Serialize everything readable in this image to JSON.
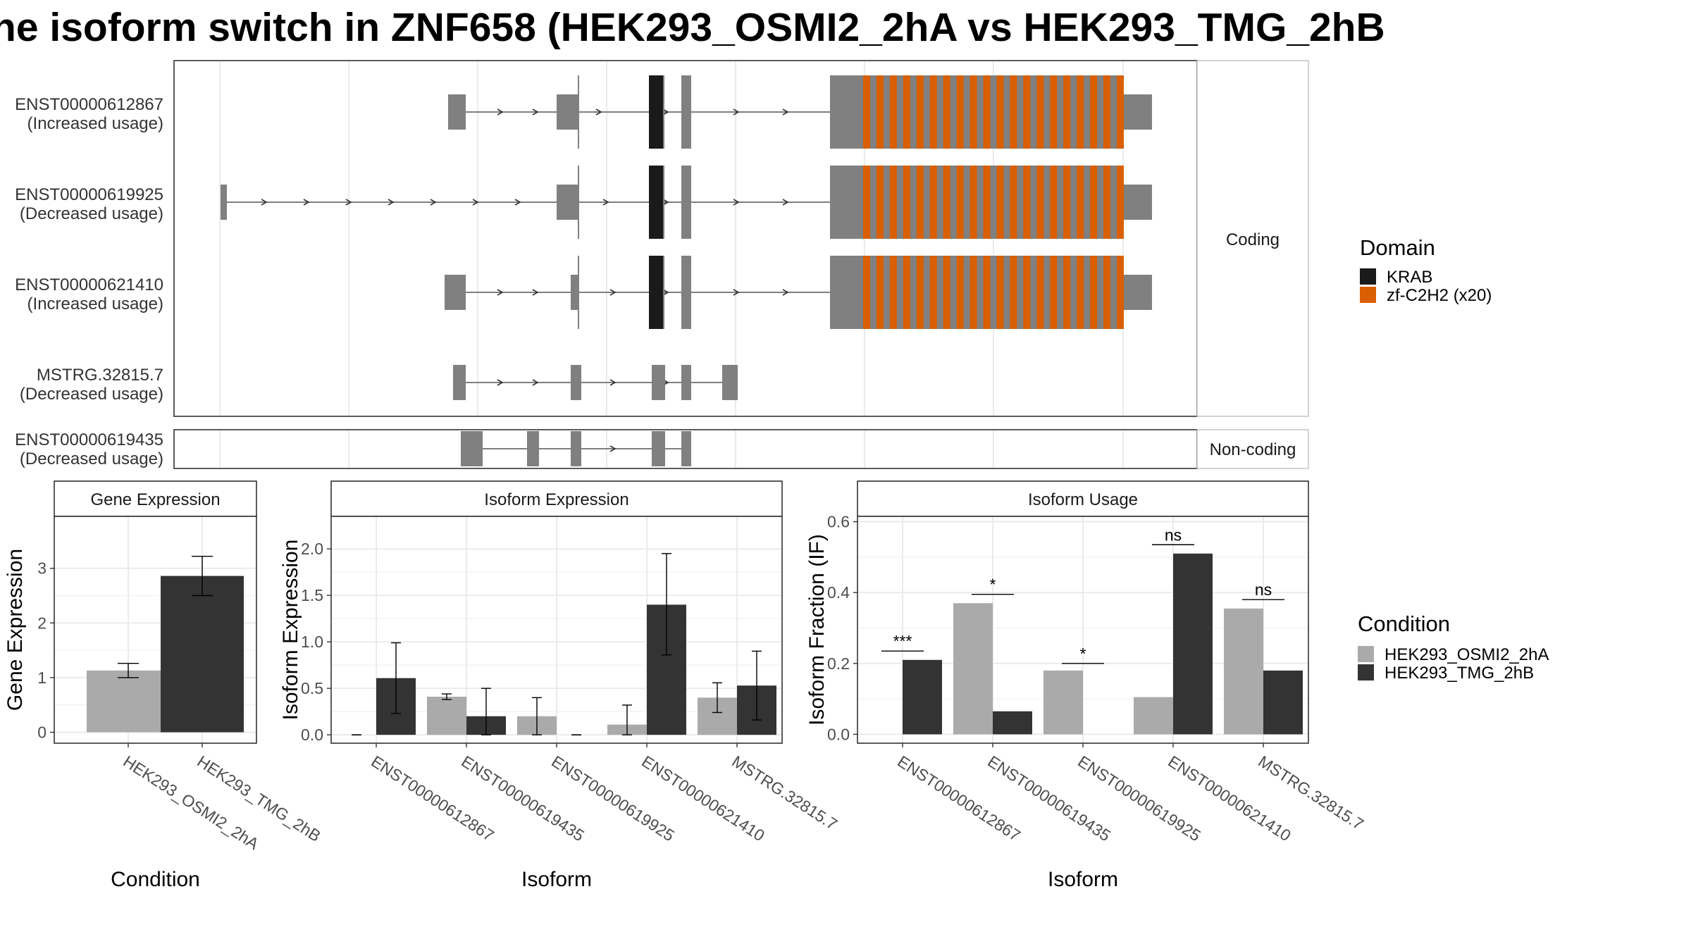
{
  "title": "he isoform switch in ZNF658 (HEK293_OSMI2_2hA vs HEK293_TMG_2hB",
  "colors": {
    "exon": "#808080",
    "krab": "#1a1a1a",
    "znf": "#d95f02",
    "cond1": "#aaaaaa",
    "cond2": "#333333"
  },
  "structure": {
    "transcripts": [
      {
        "id": "ENST00000612867",
        "usage": "(Increased usage)"
      },
      {
        "id": "ENST00000619925",
        "usage": "(Decreased usage)"
      },
      {
        "id": "ENST00000621410",
        "usage": "(Increased usage)"
      },
      {
        "id": "MSTRG.32815.7",
        "usage": "(Decreased usage)"
      },
      {
        "id": "ENST00000619435",
        "usage": "(Decreased usage)"
      }
    ],
    "facet_coding": "Coding",
    "facet_noncoding": "Non-coding"
  },
  "legend_domain": {
    "title": "Domain",
    "items": [
      {
        "label": "KRAB",
        "color": "#1a1a1a"
      },
      {
        "label": "zf-C2H2 (x20)",
        "color": "#d95f02"
      }
    ]
  },
  "legend_condition": {
    "title": "Condition",
    "items": [
      {
        "label": "HEK293_OSMI2_2hA",
        "color": "#aaaaaa"
      },
      {
        "label": "HEK293_TMG_2hB",
        "color": "#333333"
      }
    ]
  },
  "chart_data": [
    {
      "type": "bar",
      "title": "Gene Expression",
      "xlabel": "Condition",
      "ylabel": "Gene Expression",
      "categories": [
        "HEK293_OSMI2_2hA",
        "HEK293_TMG_2hB"
      ],
      "values": [
        1.13,
        2.86
      ],
      "errors": [
        [
          1.0,
          1.26
        ],
        [
          2.5,
          3.22
        ]
      ],
      "ylim": [
        -0.2,
        3.95
      ],
      "yticks": [
        "0",
        "1",
        "2",
        "3"
      ],
      "ytick_values": [
        0,
        1,
        2,
        3
      ]
    },
    {
      "type": "bar",
      "title": "Isoform Expression",
      "xlabel": "Isoform",
      "ylabel": "Isoform Expression",
      "categories": [
        "ENST00000612867",
        "ENST00000619435",
        "ENST00000619925",
        "ENST00000621410",
        "MSTRG.32815.7"
      ],
      "series": [
        {
          "name": "HEK293_OSMI2_2hA",
          "values": [
            0.0,
            0.41,
            0.2,
            0.11,
            0.4
          ]
        },
        {
          "name": "HEK293_TMG_2hB",
          "values": [
            0.61,
            0.2,
            0.0,
            1.4,
            0.53
          ]
        }
      ],
      "errors": [
        [
          [
            0.0,
            0.0
          ],
          [
            0.38,
            0.44
          ],
          [
            0.0,
            0.4
          ],
          [
            0.0,
            0.32
          ],
          [
            0.24,
            0.56
          ]
        ],
        [
          [
            0.23,
            0.99
          ],
          [
            0.0,
            0.5
          ],
          [
            0.0,
            0.0
          ],
          [
            0.86,
            1.95
          ],
          [
            0.16,
            0.9
          ]
        ]
      ],
      "ylim": [
        -0.09,
        2.35
      ],
      "yticks": [
        "0.0",
        "0.5",
        "1.0",
        "1.5",
        "2.0"
      ],
      "ytick_values": [
        0,
        0.5,
        1.0,
        1.5,
        2.0
      ]
    },
    {
      "type": "bar",
      "title": "Isoform Usage",
      "xlabel": "Isoform",
      "ylabel": "Isoform Fraction (IF)",
      "categories": [
        "ENST00000612867",
        "ENST00000619435",
        "ENST00000619925",
        "ENST00000621410",
        "MSTRG.32815.7"
      ],
      "series": [
        {
          "name": "HEK293_OSMI2_2hA",
          "values": [
            0.0,
            0.37,
            0.18,
            0.105,
            0.355
          ]
        },
        {
          "name": "HEK293_TMG_2hB",
          "values": [
            0.21,
            0.065,
            0.0,
            0.51,
            0.18
          ]
        }
      ],
      "significance": [
        "***",
        "*",
        "*",
        "ns",
        "ns"
      ],
      "sig_y": [
        0.235,
        0.395,
        0.2,
        0.535,
        0.38
      ],
      "ylim": [
        -0.025,
        0.615
      ],
      "yticks": [
        "0.0",
        "0.2",
        "0.4",
        "0.6"
      ],
      "ytick_values": [
        0,
        0.2,
        0.4,
        0.6
      ]
    }
  ]
}
